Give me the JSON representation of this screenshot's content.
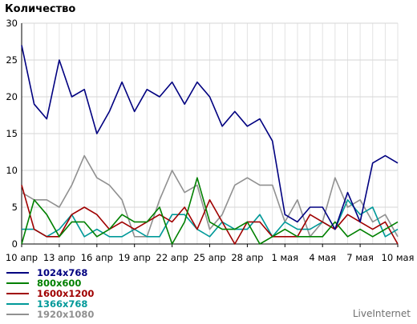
{
  "chart_data": {
    "type": "line",
    "title": "Количество",
    "ylim": [
      0,
      30
    ],
    "yticks": [
      0,
      5,
      10,
      15,
      20,
      25,
      30
    ],
    "grid": true,
    "xtick_labels": [
      "10 апр",
      "13 апр",
      "16 апр",
      "19 апр",
      "22 апр",
      "25 апр",
      "28 апр",
      "1 мая",
      "4 мая",
      "7 мая",
      "10 мая"
    ],
    "categories": [
      "10 апр",
      "11 апр",
      "12 апр",
      "13 апр",
      "14 апр",
      "15 апр",
      "16 апр",
      "17 апр",
      "18 апр",
      "19 апр",
      "20 апр",
      "21 апр",
      "22 апр",
      "23 апр",
      "24 апр",
      "25 апр",
      "26 апр",
      "27 апр",
      "28 апр",
      "29 апр",
      "30 апр",
      "1 мая",
      "2 мая",
      "3 мая",
      "4 мая",
      "5 мая",
      "6 мая",
      "7 мая",
      "8 мая",
      "9 мая",
      "10 мая"
    ],
    "legend_position": "bottom-left",
    "series": [
      {
        "name": "1024x768",
        "color": "#000080",
        "values": [
          27,
          19,
          17,
          25,
          20,
          21,
          15,
          18,
          22,
          18,
          21,
          20,
          22,
          19,
          22,
          20,
          16,
          18,
          16,
          17,
          14,
          4,
          3,
          5,
          5,
          2,
          7,
          3,
          11,
          12,
          11
        ]
      },
      {
        "name": "800x600",
        "color": "#008000",
        "values": [
          0,
          6,
          4,
          1,
          3,
          3,
          1,
          2,
          4,
          3,
          3,
          5,
          0,
          3,
          9,
          3,
          2,
          2,
          3,
          0,
          1,
          2,
          1,
          1,
          1,
          3,
          1,
          2,
          1,
          2,
          3
        ]
      },
      {
        "name": "1600x1200",
        "color": "#a00000",
        "values": [
          8,
          2,
          1,
          1,
          4,
          5,
          4,
          2,
          3,
          2,
          3,
          4,
          3,
          5,
          2,
          6,
          3,
          0,
          3,
          3,
          1,
          1,
          1,
          4,
          3,
          2,
          4,
          3,
          2,
          3,
          0
        ]
      },
      {
        "name": "1366x768",
        "color": "#009999",
        "values": [
          2,
          2,
          1,
          2,
          4,
          1,
          2,
          1,
          1,
          2,
          1,
          1,
          4,
          4,
          2,
          1,
          3,
          2,
          2,
          4,
          1,
          3,
          2,
          2,
          3,
          2,
          6,
          4,
          5,
          1,
          2
        ]
      },
      {
        "name": "1920x1080",
        "color": "#909090",
        "values": [
          7,
          6,
          6,
          5,
          8,
          12,
          9,
          8,
          6,
          1,
          1,
          6,
          10,
          7,
          8,
          2,
          4,
          8,
          9,
          8,
          8,
          3,
          6,
          1,
          3,
          9,
          5,
          6,
          3,
          4,
          1
        ]
      }
    ]
  },
  "brand": "LiveInternet"
}
